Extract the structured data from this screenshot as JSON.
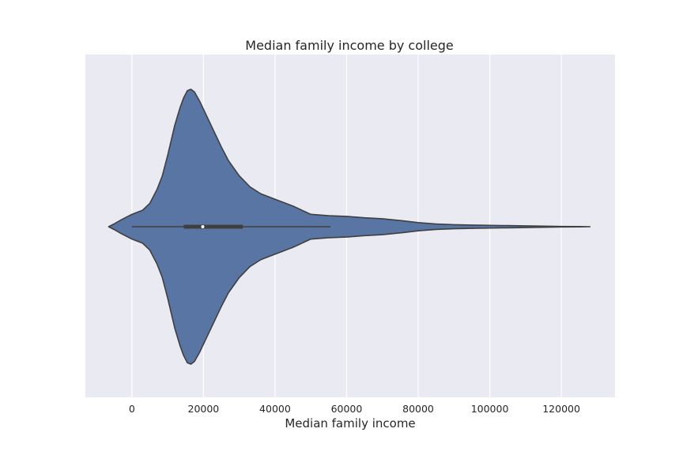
{
  "chart_data": {
    "type": "violin",
    "orientation": "horizontal",
    "title": "Median family income by college",
    "xlabel": "Median family income",
    "ylabel": "",
    "xlim": [
      -13000,
      135000
    ],
    "xticks": [
      0,
      20000,
      40000,
      60000,
      80000,
      100000,
      120000
    ],
    "xtick_labels": [
      "0",
      "20000",
      "40000",
      "60000",
      "80000",
      "100000",
      "120000"
    ],
    "grid": "x-major",
    "fill_color": "#5875a4",
    "edge_color": "#3f3f3f",
    "background_color": "#eaeaf2",
    "density": {
      "x": [
        -6500,
        -5000,
        -3000,
        0,
        3000,
        5000,
        7000,
        8500,
        10000,
        12000,
        13500,
        14500,
        15500,
        16500,
        17500,
        19000,
        21000,
        23000,
        25000,
        27000,
        30000,
        33000,
        36000,
        40000,
        45000,
        50000,
        55000,
        60000,
        65000,
        70000,
        75000,
        80000,
        85000,
        90000,
        95000,
        100000,
        105000,
        110000,
        115000,
        120000,
        125000,
        128000
      ],
      "half_width": [
        0.0,
        0.02,
        0.05,
        0.09,
        0.12,
        0.17,
        0.27,
        0.37,
        0.52,
        0.74,
        0.87,
        0.94,
        0.99,
        1.0,
        0.98,
        0.91,
        0.8,
        0.69,
        0.58,
        0.48,
        0.37,
        0.29,
        0.24,
        0.2,
        0.15,
        0.09,
        0.08,
        0.075,
        0.065,
        0.058,
        0.045,
        0.03,
        0.02,
        0.015,
        0.012,
        0.01,
        0.008,
        0.006,
        0.004,
        0.002,
        0.001,
        0.0
      ]
    },
    "box": {
      "whisker_low": 0,
      "q1": 14500,
      "median": 19800,
      "q3": 31000,
      "whisker_high": 55500
    }
  }
}
